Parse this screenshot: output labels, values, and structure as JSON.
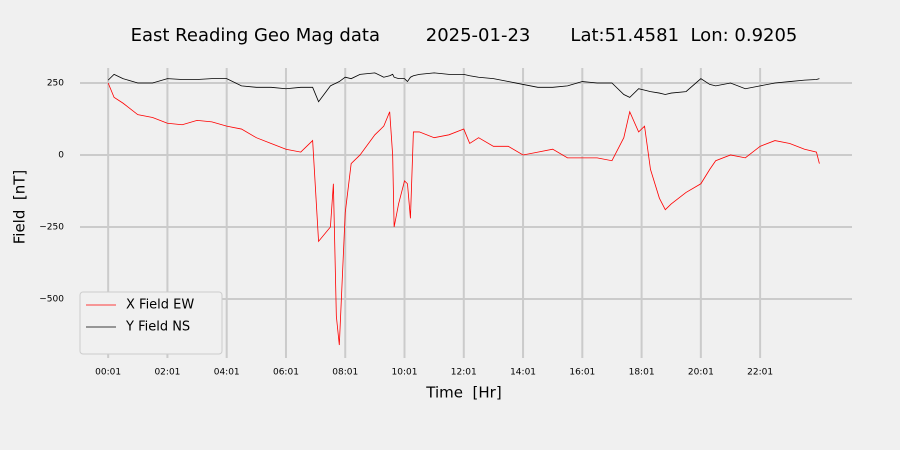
{
  "chart_data": {
    "type": "line",
    "title": "East Reading Geo Mag data        2025-01-23       Lat:51.4581  Lon: 0.9205",
    "x_label": "Time  [Hr]",
    "y_label": "Field  [nT]",
    "x": [
      0,
      0.2,
      0.5,
      1,
      1.5,
      2,
      2.5,
      3,
      3.5,
      4,
      4.5,
      5,
      5.5,
      6,
      6.5,
      6.9,
      7.1,
      7.5,
      7.6,
      7.7,
      7.8,
      8,
      8.2,
      8.5,
      9,
      9.3,
      9.5,
      9.6,
      9.65,
      9.8,
      10,
      10.1,
      10.2,
      10.3,
      10.5,
      11,
      11.5,
      12,
      12.2,
      12.5,
      13,
      13.5,
      14,
      14.5,
      15,
      15.5,
      16,
      16.5,
      17,
      17.4,
      17.6,
      17.9,
      18.1,
      18.3,
      18.6,
      18.8,
      19,
      19.5,
      20,
      20.3,
      20.5,
      21,
      21.5,
      22,
      22.5,
      23,
      23.5,
      23.9,
      24
    ],
    "series": [
      {
        "name": "X Field EW",
        "color": "#ff0000",
        "values": [
          250,
          200,
          180,
          140,
          130,
          110,
          105,
          120,
          115,
          100,
          90,
          60,
          40,
          20,
          10,
          50,
          -300,
          -250,
          -100,
          -560,
          -660,
          -200,
          -30,
          0,
          70,
          100,
          150,
          0,
          -250,
          -170,
          -90,
          -100,
          -220,
          80,
          80,
          60,
          70,
          90,
          40,
          60,
          30,
          30,
          0,
          10,
          20,
          -10,
          -10,
          -10,
          -20,
          60,
          150,
          80,
          100,
          -50,
          -150,
          -190,
          -170,
          -130,
          -100,
          -50,
          -20,
          0,
          -10,
          30,
          50,
          40,
          20,
          10,
          -30
        ]
      },
      {
        "name": "Y Field NS",
        "color": "#000000",
        "values": [
          260,
          280,
          265,
          250,
          250,
          265,
          262,
          262,
          265,
          265,
          240,
          235,
          235,
          230,
          235,
          235,
          185,
          240,
          245,
          250,
          255,
          270,
          265,
          280,
          285,
          270,
          275,
          280,
          270,
          265,
          265,
          255,
          270,
          275,
          280,
          285,
          280,
          280,
          275,
          270,
          265,
          255,
          245,
          235,
          235,
          240,
          255,
          250,
          250,
          210,
          200,
          230,
          225,
          220,
          215,
          210,
          215,
          220,
          265,
          245,
          240,
          250,
          230,
          240,
          250,
          255,
          260,
          262,
          265
        ]
      }
    ],
    "xlim": [
      -0.95,
      25.1
    ],
    "xticks": [
      {
        "value": 0,
        "label": "00:01"
      },
      {
        "value": 2,
        "label": "02:01"
      },
      {
        "value": 4,
        "label": "04:01"
      },
      {
        "value": 6,
        "label": "06:01"
      },
      {
        "value": 8,
        "label": "08:01"
      },
      {
        "value": 10,
        "label": "10:01"
      },
      {
        "value": 12,
        "label": "12:01"
      },
      {
        "value": 14,
        "label": "14:01"
      },
      {
        "value": 16,
        "label": "16:01"
      },
      {
        "value": 18,
        "label": "18:01"
      },
      {
        "value": 20,
        "label": "20:01"
      },
      {
        "value": 22,
        "label": "22:01"
      }
    ],
    "ylim": [
      -705,
      302
    ],
    "yticks": [
      {
        "value": -500,
        "label": "−500"
      },
      {
        "value": -250,
        "label": "−250"
      },
      0,
      250
    ],
    "grid": true,
    "legend": "lower left"
  }
}
